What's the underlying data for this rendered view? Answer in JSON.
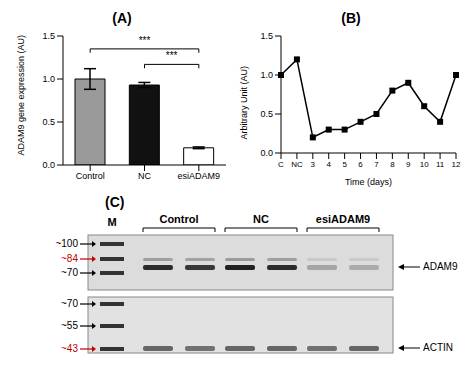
{
  "chart_data": [
    {
      "type": "bar",
      "title": "(A)",
      "y_label": "ADAM9 gene expression (AU)",
      "categories": [
        "Control",
        "NC",
        "esiADAM9"
      ],
      "values": [
        1.0,
        0.93,
        0.2
      ],
      "errors": [
        0.12,
        0.03,
        0.01
      ],
      "colors": [
        "#9a9a9a",
        "#111111",
        "#ffffff"
      ],
      "ylim": [
        0,
        1.5
      ],
      "yticks": [
        {
          "value": 0,
          "label": "0.0"
        },
        {
          "value": 0.5,
          "label": "0.5"
        },
        {
          "value": 1,
          "label": "1.0"
        },
        {
          "value": 1.5,
          "label": "1.5"
        }
      ],
      "grid": false,
      "annotations": [
        {
          "text": "***",
          "from": "Control",
          "to": "esiADAM9"
        },
        {
          "text": "***",
          "from": "NC",
          "to": "esiADAM9"
        }
      ]
    },
    {
      "type": "line",
      "title": "(B)",
      "x_label": "Time (days)",
      "y_label": "Arbitrary Unit (AU)",
      "categories": [
        "C",
        "NC",
        "3",
        "4",
        "5",
        "6",
        "7",
        "8",
        "9",
        "10",
        "11",
        "12"
      ],
      "values": [
        1.0,
        1.2,
        0.2,
        0.3,
        0.3,
        0.4,
        0.5,
        0.8,
        0.9,
        0.6,
        0.4,
        1.0
      ],
      "color": "#000000",
      "marker": "square",
      "ylim": [
        0,
        1.5
      ],
      "yticks": [
        {
          "value": 0,
          "label": "0.0"
        },
        {
          "value": 0.5,
          "label": "0.5"
        },
        {
          "value": 1,
          "label": "1.0"
        },
        {
          "value": 1.5,
          "label": "1.5"
        }
      ],
      "grid": false
    }
  ],
  "panel_c": {
    "title": "(C)",
    "ladder_label": "M",
    "groups": [
      "Control",
      "NC",
      "esiADAM9"
    ],
    "top_blot": {
      "markers": [
        {
          "label": "~100",
          "color": "#000000"
        },
        {
          "label": "~84",
          "color": "#c00000"
        },
        {
          "label": "~70",
          "color": "#000000"
        }
      ],
      "band_label": "ADAM9"
    },
    "bottom_blot": {
      "markers": [
        {
          "label": "~70",
          "color": "#000000"
        },
        {
          "label": "~55",
          "color": "#000000"
        },
        {
          "label": "~43",
          "color": "#c00000"
        }
      ],
      "band_label": "ACTIN"
    }
  }
}
